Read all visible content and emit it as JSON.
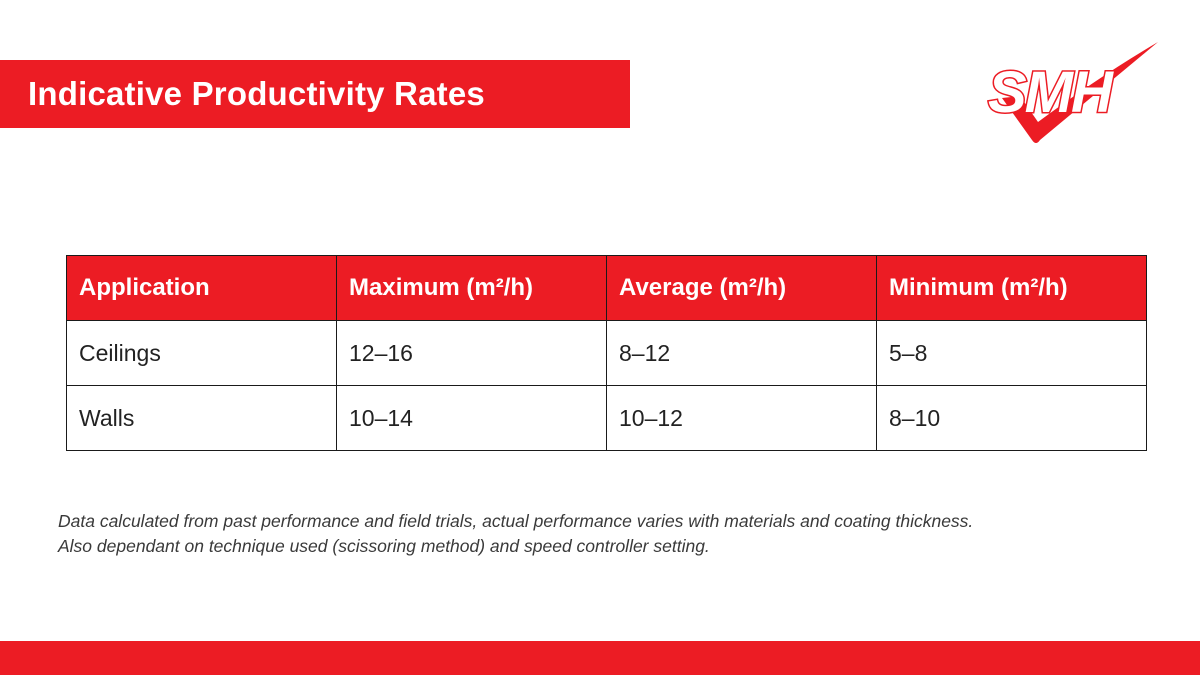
{
  "title": "Indicative Productivity Rates",
  "logo": {
    "text": "SMH",
    "icon": "checkmark-icon",
    "color": "#ec1c24"
  },
  "table": {
    "headers": [
      "Application",
      "Maximum  (m²/h)",
      "Average (m²/h)",
      "Minimum (m²/h)"
    ],
    "rows": [
      [
        "Ceilings",
        "12–16",
        "8–12",
        "5–8"
      ],
      [
        "Walls",
        "10–14",
        "10–12",
        "8–10"
      ]
    ]
  },
  "footnote": {
    "line1": "Data calculated from past performance and field trials, actual performance varies with materials and coating thickness.",
    "line2": "Also dependant on technique used (scissoring method) and speed controller setting."
  },
  "colors": {
    "accent": "#ec1c24",
    "text": "#222222"
  }
}
